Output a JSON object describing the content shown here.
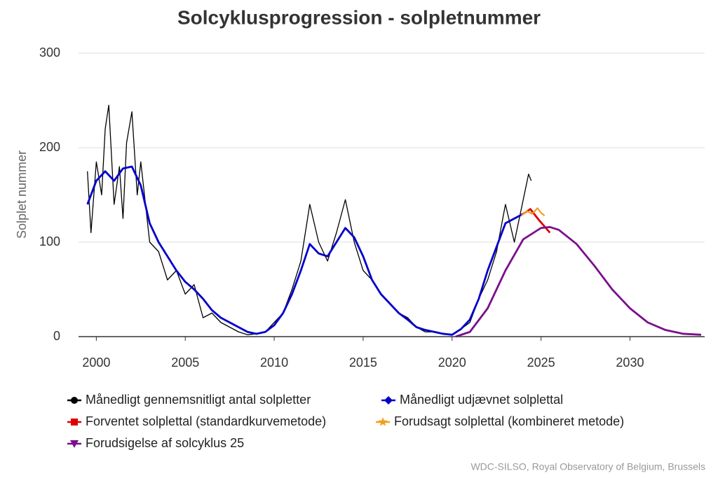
{
  "chart_data": {
    "type": "line",
    "title": "Solcyklusprogression - solpletnummer",
    "y_label": "Solplet nummer",
    "credit": "WDC-SILSO, Royal Observatory of Belgium, Brussels",
    "xlim": [
      1999,
      2034.2
    ],
    "xticks": [
      2000,
      2005,
      2010,
      2015,
      2020,
      2025,
      2030
    ],
    "ylim": [
      0,
      300
    ],
    "yticks": [
      0,
      100,
      200,
      300
    ],
    "grid": true,
    "legend": "bottom",
    "series": [
      {
        "name": "Månedligt gennemsnitligt antal solpletter",
        "color": "#000000",
        "marker": "circle",
        "x": [
          1999.5,
          1999.7,
          2000,
          2000.3,
          2000.5,
          2000.7,
          2001,
          2001.3,
          2001.5,
          2001.7,
          2002,
          2002.3,
          2002.5,
          2003,
          2003.5,
          2004,
          2004.5,
          2005,
          2005.5,
          2006,
          2006.5,
          2007,
          2007.5,
          2008,
          2008.5,
          2009,
          2009.5,
          2010,
          2010.5,
          2011,
          2011.5,
          2012,
          2012.5,
          2013,
          2013.5,
          2014,
          2014.5,
          2015,
          2015.5,
          2016,
          2016.5,
          2017,
          2017.5,
          2018,
          2018.5,
          2019,
          2019.5,
          2020,
          2020.5,
          2021,
          2021.5,
          2022,
          2022.5,
          2023,
          2023.5,
          2024,
          2024.3,
          2024.45
        ],
        "values": [
          175,
          110,
          185,
          150,
          220,
          245,
          140,
          180,
          125,
          205,
          238,
          150,
          185,
          100,
          90,
          60,
          70,
          45,
          55,
          20,
          25,
          15,
          10,
          5,
          2,
          3,
          5,
          15,
          25,
          50,
          80,
          140,
          100,
          80,
          110,
          145,
          100,
          70,
          60,
          45,
          35,
          25,
          20,
          10,
          5,
          5,
          3,
          2,
          8,
          15,
          40,
          60,
          90,
          140,
          100,
          145,
          172,
          165
        ]
      },
      {
        "name": "Månedligt udjævnet solplettal",
        "color": "#0000cc",
        "marker": "diamond",
        "x": [
          1999.5,
          2000,
          2000.5,
          2001,
          2001.5,
          2002,
          2002.5,
          2003,
          2003.5,
          2004,
          2004.5,
          2005,
          2005.5,
          2006,
          2006.5,
          2007,
          2007.5,
          2008,
          2008.5,
          2009,
          2009.5,
          2010,
          2010.5,
          2011,
          2011.5,
          2012,
          2012.5,
          2013,
          2013.5,
          2014,
          2014.5,
          2015,
          2015.5,
          2016,
          2016.5,
          2017,
          2017.5,
          2018,
          2018.5,
          2019,
          2019.5,
          2020,
          2020.5,
          2021,
          2021.5,
          2022,
          2022.5,
          2023,
          2023.5,
          2024
        ],
        "values": [
          140,
          165,
          175,
          165,
          178,
          180,
          160,
          120,
          100,
          85,
          70,
          58,
          50,
          40,
          28,
          20,
          15,
          10,
          5,
          3,
          5,
          12,
          25,
          45,
          70,
          98,
          88,
          85,
          100,
          115,
          105,
          85,
          60,
          45,
          35,
          25,
          18,
          10,
          7,
          5,
          3,
          2,
          8,
          18,
          40,
          70,
          95,
          120,
          125,
          130
        ]
      },
      {
        "name": "Forventet solplettal (standardkurvemetode)",
        "color": "#e00000",
        "marker": "square",
        "x": [
          2024,
          2024.4,
          2024.9,
          2025.5
        ],
        "values": [
          130,
          135,
          123,
          110
        ]
      },
      {
        "name": "Forudsagt solplettal (kombineret metode)",
        "color": "#f0a020",
        "marker": "star",
        "x": [
          2023.9,
          2024.2,
          2024.5,
          2024.8,
          2025.0,
          2025.2
        ],
        "values": [
          128,
          133,
          130,
          136,
          131,
          128
        ]
      },
      {
        "name": "Forudsigelse af solcyklus 25",
        "color": "#7b0f8c",
        "marker": "triangle-down",
        "x": [
          2020.2,
          2021,
          2022,
          2023,
          2024,
          2025,
          2025.5,
          2026,
          2027,
          2028,
          2029,
          2030,
          2031,
          2032,
          2033,
          2034
        ],
        "values": [
          0,
          5,
          30,
          70,
          103,
          115,
          116,
          113,
          98,
          75,
          50,
          30,
          15,
          7,
          3,
          2
        ]
      }
    ]
  }
}
